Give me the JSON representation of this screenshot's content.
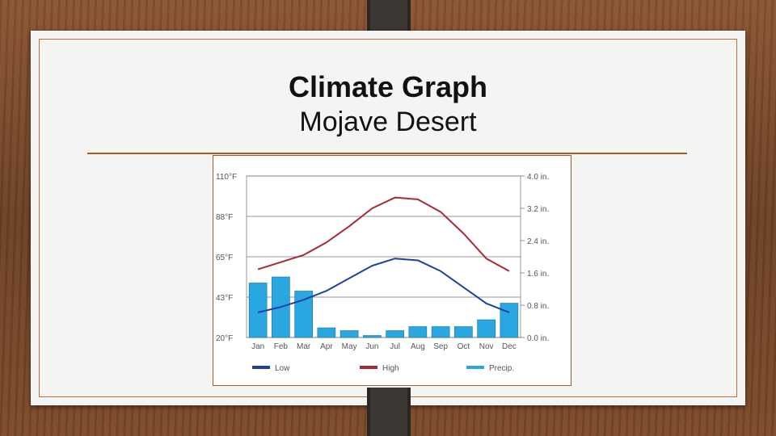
{
  "slide": {
    "title": "Climate Graph",
    "subtitle": "Mojave Desert"
  },
  "chart_data": {
    "type": "line",
    "categories": [
      "Jan",
      "Feb",
      "Mar",
      "Apr",
      "May",
      "Jun",
      "Jul",
      "Aug",
      "Sep",
      "Oct",
      "Nov",
      "Dec"
    ],
    "series": [
      {
        "name": "Low",
        "kind": "line",
        "axis": "left",
        "color": "#1f3fa8",
        "values": [
          34,
          37,
          41,
          46,
          53,
          60,
          64,
          63,
          57,
          48,
          39,
          34
        ]
      },
      {
        "name": "High",
        "kind": "line",
        "axis": "left",
        "color": "#a62a34",
        "values": [
          58,
          62,
          66,
          73,
          82,
          92,
          98,
          97,
          90,
          78,
          64,
          57
        ]
      },
      {
        "name": "Precip.",
        "kind": "bar",
        "axis": "right",
        "color": "#2aa6e0",
        "values": [
          1.35,
          1.5,
          1.15,
          0.24,
          0.17,
          0.05,
          0.17,
          0.27,
          0.27,
          0.27,
          0.44,
          0.85
        ]
      }
    ],
    "y_left": {
      "ticks": [
        "110°F",
        "88°F",
        "65°F",
        "43°F",
        "20°F"
      ],
      "ylim": [
        20,
        110
      ]
    },
    "y_right": {
      "ticks": [
        "4.0 in.",
        "3.2 in.",
        "2.4 in.",
        "1.6 in.",
        "0.8 in.",
        "0.0 in."
      ],
      "ylim": [
        0,
        4
      ]
    },
    "grid": true,
    "legend_position": "bottom"
  },
  "colors": {
    "low": "#1f3fa8",
    "high": "#a62a34",
    "precip": "#2aa6e0",
    "accent_border": "#a35a28"
  }
}
